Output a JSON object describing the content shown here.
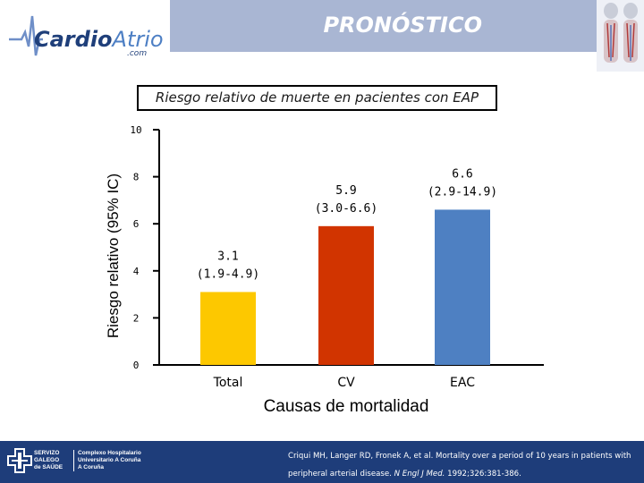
{
  "header": {
    "logo_main": "Cardio",
    "logo_accent": "Atrio",
    "logo_sub": ".com",
    "title": "PRONÓSTICO"
  },
  "chart_data": {
    "type": "bar",
    "title": "Riesgo relativo de muerte en pacientes con EAP",
    "xlabel": "Causas de mortalidad",
    "ylabel": "Riesgo relativo (95% IC)",
    "ylim": [
      0,
      10
    ],
    "yticks": [
      "0",
      "2",
      "4",
      "6",
      "8",
      "10"
    ],
    "categories": [
      "Total",
      "CV",
      "EAC"
    ],
    "values": [
      3.1,
      5.9,
      6.6
    ],
    "ci_labels": [
      "(1.9-4.9)",
      "(3.0-6.6)",
      "(2.9-14.9)"
    ],
    "colors": [
      "#fdc800",
      "#d13400",
      "#4e80c2"
    ],
    "grid": false
  },
  "footer": {
    "org_lines": [
      "SERVIZO",
      "GALEGO",
      "de SAÚDE"
    ],
    "org_lines_2": [
      "Complexo Hospitalario",
      "Universitario A Coruña",
      "A Coruña"
    ],
    "citation_plain": "Criqui MH, Langer RD, Fronek A, et al. Mortality over a period of 10 years in patients with peripheral arterial disease.",
    "citation_journal": "N Engl J Med.",
    "citation_tail": "1992;326:381-386."
  }
}
